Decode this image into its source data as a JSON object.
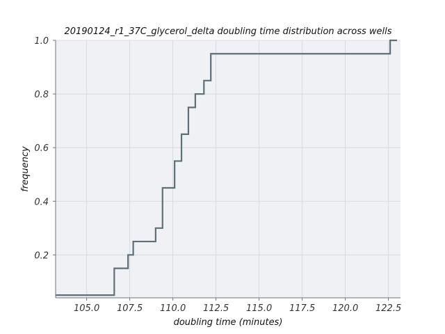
{
  "chart_data": {
    "type": "line",
    "subtype": "step-ecdf",
    "title": "20190124_r1_37C_glycerol_delta doubling time distribution across wells",
    "xlabel": "doubling time (minutes)",
    "ylabel": "frequency",
    "xlim": [
      103.2,
      123.2
    ],
    "ylim": [
      0.04,
      1.0
    ],
    "grid": true,
    "x_ticks": [
      105.0,
      107.5,
      110.0,
      112.5,
      115.0,
      117.5,
      120.0,
      122.5
    ],
    "x_tick_labels": [
      "105.0",
      "107.5",
      "110.0",
      "112.5",
      "115.0",
      "117.5",
      "120.0",
      "122.5"
    ],
    "y_ticks": [
      0.2,
      0.4,
      0.6,
      0.8,
      1.0
    ],
    "y_tick_labels": [
      "0.2",
      "0.4",
      "0.6",
      "0.8",
      "1.0"
    ],
    "series": [
      {
        "x": [
          103.2,
          106.6,
          107.4,
          107.7,
          109.0,
          109.4,
          110.1,
          110.5,
          110.9,
          111.3,
          111.8,
          112.2,
          122.6,
          123.0
        ],
        "y": [
          0.05,
          0.15,
          0.2,
          0.25,
          0.3,
          0.45,
          0.55,
          0.65,
          0.75,
          0.8,
          0.85,
          0.95,
          1.0,
          1.0
        ]
      }
    ],
    "colors": {
      "line": "#5f6f78",
      "plot_bg": "#eff1f5",
      "grid": "#d2d5da",
      "axis": "#6a7580"
    }
  }
}
